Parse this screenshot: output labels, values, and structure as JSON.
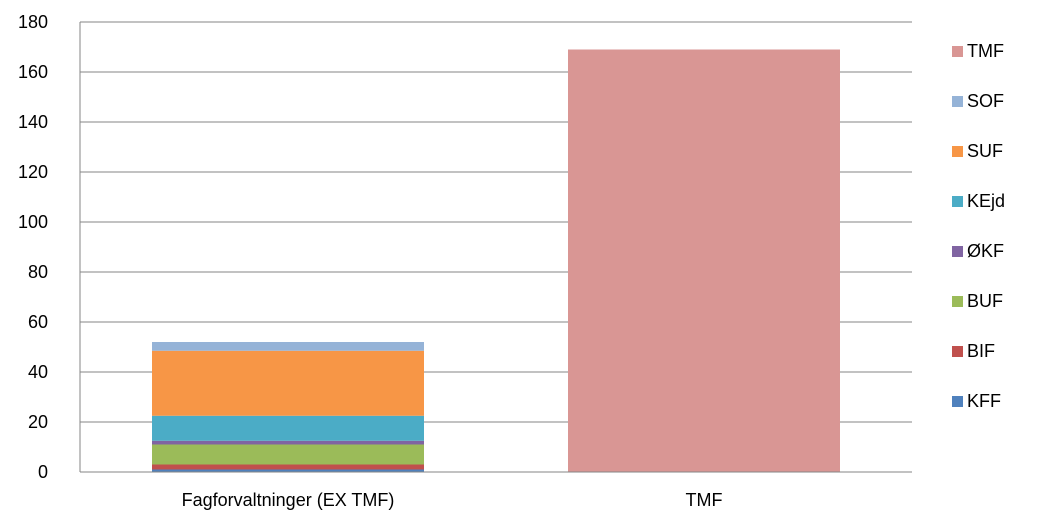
{
  "chart_data": {
    "type": "bar",
    "stacked": true,
    "categories": [
      "Fagforvaltninger (EX TMF)",
      "TMF"
    ],
    "series": [
      {
        "name": "KFF",
        "color": "#4F81BD",
        "values": [
          1,
          0
        ]
      },
      {
        "name": "BIF",
        "color": "#C0504D",
        "values": [
          2,
          0
        ]
      },
      {
        "name": "BUF",
        "color": "#9BBB59",
        "values": [
          8,
          0
        ]
      },
      {
        "name": "ØKF",
        "color": "#8064A2",
        "values": [
          1.5,
          0
        ]
      },
      {
        "name": "KEjd",
        "color": "#4BACC6",
        "values": [
          10,
          0
        ]
      },
      {
        "name": "SUF",
        "color": "#F79646",
        "values": [
          26,
          0
        ]
      },
      {
        "name": "SOF",
        "color": "#95B3D7",
        "values": [
          3.5,
          0
        ]
      },
      {
        "name": "TMF",
        "color": "#D99694",
        "values": [
          0,
          169
        ]
      }
    ],
    "yticks": [
      0,
      20,
      40,
      60,
      80,
      100,
      120,
      140,
      160,
      180
    ],
    "ylim": [
      0,
      180
    ],
    "grid": true,
    "legend_position": "right"
  }
}
